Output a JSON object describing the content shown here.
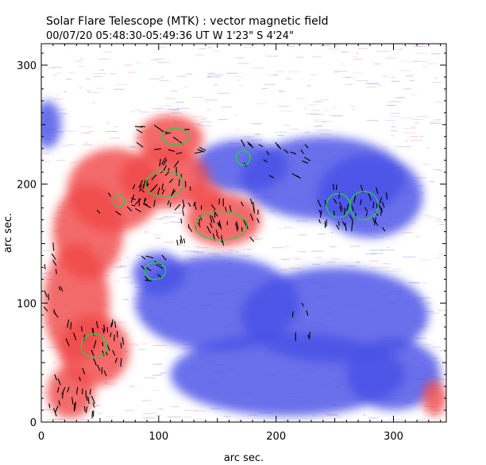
{
  "header": {
    "title": "Solar Flare Telescope (MTK) : vector magnetic field",
    "subtitle": "00/07/20  05:48:30-05:49:36 UT     W 1'23\"  S 4'24\""
  },
  "colors": {
    "positive_polarity": "#f04848",
    "negative_polarity": "#4850e6",
    "contour": "#22d24a",
    "vector": "#000000",
    "background": "#ffffff"
  },
  "chart_data": {
    "type": "heatmap",
    "xlabel": "arc sec.",
    "ylabel": "arc sec.",
    "xlim": [
      0,
      345
    ],
    "ylim": [
      0,
      318
    ],
    "x_ticks": [
      0,
      100,
      200,
      300
    ],
    "y_ticks": [
      0,
      100,
      200,
      300
    ],
    "positive_regions": [
      {
        "cx": 110,
        "cy": 238,
        "rx": 28,
        "ry": 20
      },
      {
        "cx": 105,
        "cy": 205,
        "rx": 38,
        "ry": 25
      },
      {
        "cx": 62,
        "cy": 195,
        "rx": 40,
        "ry": 35
      },
      {
        "cx": 40,
        "cy": 160,
        "rx": 30,
        "ry": 40
      },
      {
        "cx": 155,
        "cy": 170,
        "rx": 32,
        "ry": 22
      },
      {
        "cx": 140,
        "cy": 190,
        "rx": 15,
        "ry": 12
      },
      {
        "cx": 30,
        "cy": 100,
        "rx": 28,
        "ry": 50
      },
      {
        "cx": 45,
        "cy": 60,
        "rx": 30,
        "ry": 30
      },
      {
        "cx": 25,
        "cy": 25,
        "rx": 20,
        "ry": 22
      },
      {
        "cx": 335,
        "cy": 20,
        "rx": 10,
        "ry": 15
      }
    ],
    "negative_regions": [
      {
        "cx": 170,
        "cy": 215,
        "rx": 40,
        "ry": 22
      },
      {
        "cx": 240,
        "cy": 205,
        "rx": 70,
        "ry": 35
      },
      {
        "cx": 280,
        "cy": 190,
        "rx": 45,
        "ry": 35
      },
      {
        "cx": 100,
        "cy": 125,
        "rx": 22,
        "ry": 18
      },
      {
        "cx": 150,
        "cy": 100,
        "rx": 70,
        "ry": 40
      },
      {
        "cx": 250,
        "cy": 90,
        "rx": 80,
        "ry": 40
      },
      {
        "cx": 210,
        "cy": 40,
        "rx": 100,
        "ry": 35
      },
      {
        "cx": 300,
        "cy": 40,
        "rx": 40,
        "ry": 30
      },
      {
        "cx": 5,
        "cy": 250,
        "rx": 12,
        "ry": 20
      }
    ],
    "contours": [
      {
        "cx": 114,
        "cy": 240,
        "rx": 11,
        "ry": 7
      },
      {
        "cx": 105,
        "cy": 200,
        "rx": 16,
        "ry": 11
      },
      {
        "cx": 66,
        "cy": 186,
        "rx": 5,
        "ry": 5
      },
      {
        "cx": 172,
        "cy": 222,
        "rx": 6,
        "ry": 6
      },
      {
        "cx": 153,
        "cy": 165,
        "rx": 22,
        "ry": 12
      },
      {
        "cx": 253,
        "cy": 182,
        "rx": 10,
        "ry": 10
      },
      {
        "cx": 275,
        "cy": 182,
        "rx": 12,
        "ry": 12
      },
      {
        "cx": 97,
        "cy": 127,
        "rx": 9,
        "ry": 7
      },
      {
        "cx": 45,
        "cy": 64,
        "rx": 11,
        "ry": 10
      }
    ]
  }
}
